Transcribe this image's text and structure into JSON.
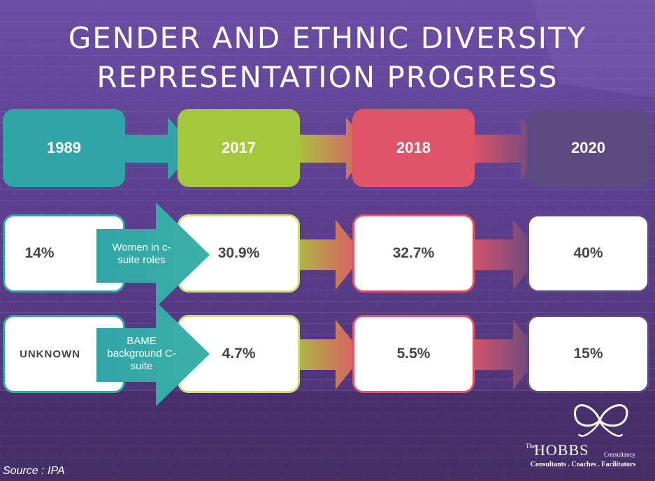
{
  "title": {
    "line1": "GENDER AND ETHNIC DIVERSITY",
    "line2": "REPRESENTATION PROGRESS"
  },
  "years": [
    "1989",
    "2017",
    "2018",
    "2020"
  ],
  "rows": [
    {
      "label": "Women in c-suite roles",
      "values": [
        "14%",
        "30.9%",
        "32.7%",
        "40%"
      ]
    },
    {
      "label": "BAME background C-suite",
      "values": [
        "UNKNOWN",
        "4.7%",
        "5.5%",
        "15%"
      ]
    }
  ],
  "source": "Source :  IPA",
  "logo": {
    "prefix": "The",
    "name": "HOBBS",
    "suffix": "Consultancy",
    "tagline": "Consultants  .  Coaches  .  Facilitators",
    "icon": "butterfly-icon"
  },
  "colors": {
    "year_1989": "#2fa5a8",
    "year_2017": "#a5c73d",
    "year_2018": "#e05468",
    "year_2020": "#5c4a82",
    "background": "#5b3f8c"
  }
}
